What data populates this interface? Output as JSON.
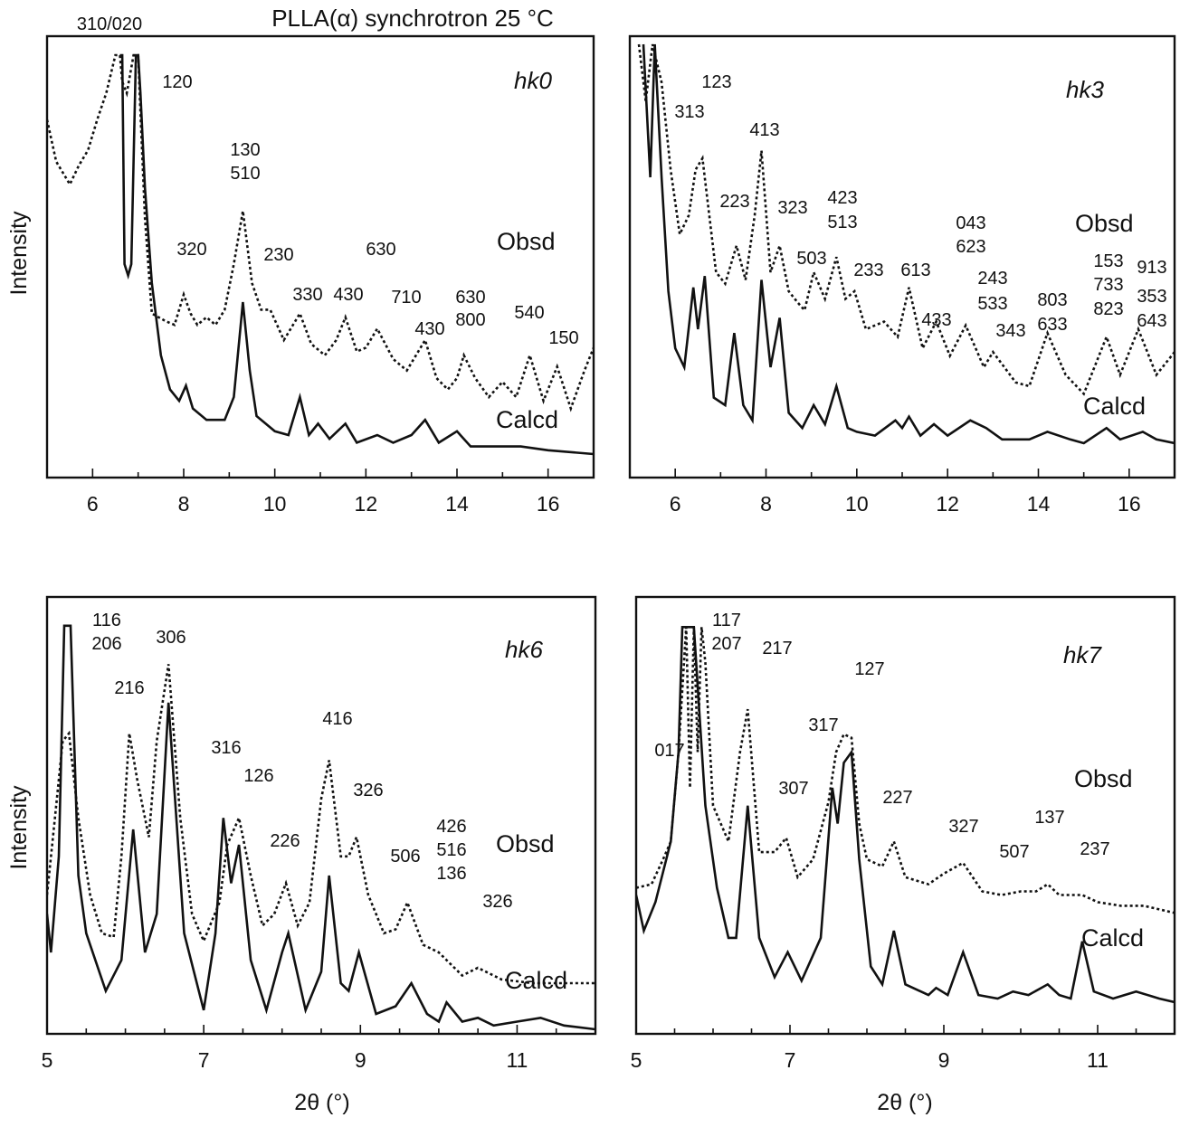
{
  "figure": {
    "title": "PLLA(α) synchrotron 25 °C"
  },
  "chart_data": [
    {
      "type": "line",
      "panel": "top-left",
      "tag": "hk0",
      "ylabel": "Intensity",
      "xlabel": "",
      "xlim": [
        5,
        17
      ],
      "xticks": [
        6,
        8,
        10,
        12,
        14,
        16
      ],
      "grid": false,
      "series_labels": [
        "Obsd",
        "Calcd"
      ],
      "peak_labels": [
        "310/020",
        "120",
        "130",
        "510",
        "320",
        "230",
        "630",
        "330",
        "430",
        "710",
        "630",
        "800",
        "430",
        "540",
        "150"
      ],
      "series": [
        {
          "name": "Obsd",
          "style": "dotted",
          "x": [
            5.0,
            5.2,
            5.5,
            5.7,
            5.9,
            6.1,
            6.3,
            6.5,
            6.6,
            6.65,
            6.75,
            6.9,
            7.0,
            7.05,
            7.15,
            7.3,
            7.6,
            7.8,
            8.0,
            8.15,
            8.3,
            8.5,
            8.7,
            8.9,
            9.1,
            9.3,
            9.5,
            9.7,
            9.9,
            10.2,
            10.55,
            10.8,
            11.1,
            11.35,
            11.55,
            11.8,
            12.0,
            12.25,
            12.6,
            12.9,
            13.1,
            13.3,
            13.55,
            13.8,
            14.0,
            14.15,
            14.4,
            14.7,
            15.0,
            15.3,
            15.6,
            15.9,
            16.2,
            16.5,
            16.8,
            17.0
          ],
          "y": [
            0.88,
            0.77,
            0.71,
            0.76,
            0.8,
            0.88,
            0.95,
            1.05,
            1.05,
            0.98,
            0.95,
            1.05,
            1.05,
            0.9,
            0.62,
            0.37,
            0.35,
            0.34,
            0.42,
            0.37,
            0.34,
            0.36,
            0.34,
            0.38,
            0.5,
            0.64,
            0.45,
            0.38,
            0.38,
            0.3,
            0.37,
            0.29,
            0.26,
            0.3,
            0.36,
            0.27,
            0.28,
            0.33,
            0.25,
            0.22,
            0.26,
            0.3,
            0.2,
            0.17,
            0.2,
            0.26,
            0.2,
            0.15,
            0.19,
            0.15,
            0.26,
            0.14,
            0.23,
            0.12,
            0.22,
            0.28
          ]
        },
        {
          "name": "Calcd",
          "style": "solid",
          "x": [
            6.6,
            6.65,
            6.7,
            6.78,
            6.85,
            6.95,
            7.0,
            7.05,
            7.15,
            7.3,
            7.5,
            7.7,
            7.9,
            8.05,
            8.2,
            8.5,
            8.9,
            9.1,
            9.3,
            9.45,
            9.6,
            9.8,
            10.0,
            10.3,
            10.55,
            10.75,
            10.95,
            11.2,
            11.55,
            11.8,
            12.25,
            12.6,
            13.0,
            13.3,
            13.6,
            14.0,
            14.3,
            14.8,
            15.4,
            16.0,
            17.0
          ],
          "y": [
            1.05,
            1.05,
            0.5,
            0.47,
            0.5,
            1.05,
            1.05,
            0.95,
            0.7,
            0.45,
            0.26,
            0.17,
            0.14,
            0.18,
            0.12,
            0.09,
            0.09,
            0.15,
            0.4,
            0.22,
            0.1,
            0.08,
            0.06,
            0.05,
            0.15,
            0.05,
            0.08,
            0.04,
            0.08,
            0.03,
            0.05,
            0.03,
            0.05,
            0.09,
            0.03,
            0.06,
            0.02,
            0.02,
            0.02,
            0.01,
            0.0
          ]
        }
      ]
    },
    {
      "type": "line",
      "panel": "top-right",
      "tag": "hk3",
      "ylabel": "",
      "xlabel": "",
      "xlim": [
        5,
        17
      ],
      "xticks": [
        6,
        8,
        10,
        12,
        14,
        16
      ],
      "grid": false,
      "series_labels": [
        "Obsd",
        "Calcd"
      ],
      "peak_labels": [
        "123",
        "313",
        "413",
        "223",
        "323",
        "423",
        "513",
        "503",
        "233",
        "613",
        "043",
        "623",
        "433",
        "243",
        "533",
        "343",
        "803",
        "633",
        "153",
        "733",
        "823",
        "913",
        "353",
        "643"
      ],
      "series": [
        {
          "name": "Obsd",
          "style": "dotted",
          "x": [
            5.2,
            5.35,
            5.5,
            5.7,
            5.9,
            6.1,
            6.3,
            6.45,
            6.6,
            6.9,
            7.1,
            7.35,
            7.55,
            7.75,
            7.9,
            8.1,
            8.3,
            8.5,
            8.7,
            8.85,
            9.05,
            9.3,
            9.55,
            9.75,
            9.95,
            10.2,
            10.6,
            10.9,
            11.15,
            11.45,
            11.75,
            12.05,
            12.4,
            12.8,
            13.0,
            13.25,
            13.5,
            13.8,
            14.2,
            14.6,
            15.0,
            15.5,
            15.8,
            16.2,
            16.6,
            17.0
          ],
          "y": [
            1.05,
            0.9,
            1.05,
            0.95,
            0.72,
            0.55,
            0.6,
            0.72,
            0.75,
            0.45,
            0.42,
            0.52,
            0.43,
            0.6,
            0.77,
            0.45,
            0.52,
            0.4,
            0.37,
            0.35,
            0.45,
            0.38,
            0.49,
            0.38,
            0.4,
            0.3,
            0.32,
            0.28,
            0.41,
            0.25,
            0.32,
            0.23,
            0.31,
            0.2,
            0.24,
            0.2,
            0.16,
            0.15,
            0.29,
            0.18,
            0.13,
            0.28,
            0.18,
            0.3,
            0.18,
            0.24
          ]
        },
        {
          "name": "Calcd",
          "style": "solid",
          "x": [
            5.3,
            5.45,
            5.55,
            5.7,
            5.85,
            6.0,
            6.2,
            6.4,
            6.5,
            6.65,
            6.85,
            7.1,
            7.3,
            7.5,
            7.7,
            7.9,
            8.1,
            8.3,
            8.5,
            8.8,
            9.05,
            9.3,
            9.55,
            9.8,
            10.0,
            10.4,
            10.85,
            11.0,
            11.15,
            11.4,
            11.7,
            12.0,
            12.5,
            12.85,
            13.2,
            13.8,
            14.2,
            14.7,
            15.0,
            15.5,
            15.8,
            16.3,
            16.6,
            17.0
          ],
          "y": [
            1.05,
            0.7,
            1.05,
            0.7,
            0.4,
            0.25,
            0.2,
            0.41,
            0.3,
            0.44,
            0.12,
            0.1,
            0.29,
            0.1,
            0.06,
            0.43,
            0.2,
            0.33,
            0.08,
            0.04,
            0.1,
            0.05,
            0.15,
            0.04,
            0.03,
            0.02,
            0.06,
            0.04,
            0.07,
            0.02,
            0.05,
            0.02,
            0.06,
            0.04,
            0.01,
            0.01,
            0.03,
            0.01,
            0.0,
            0.04,
            0.01,
            0.03,
            0.01,
            0.0
          ]
        }
      ]
    },
    {
      "type": "line",
      "panel": "bottom-left",
      "tag": "hk6",
      "ylabel": "Intensity",
      "xlabel": "2θ (°)",
      "xlim": [
        5,
        12
      ],
      "xticks": [
        5,
        7,
        9,
        11
      ],
      "grid": false,
      "series_labels": [
        "Obsd",
        "Calcd"
      ],
      "peak_labels": [
        "116",
        "206",
        "306",
        "216",
        "316",
        "126",
        "416",
        "226",
        "326",
        "506",
        "426",
        "516",
        "136",
        "326"
      ],
      "series": [
        {
          "name": "Obsd",
          "style": "dotted",
          "x": [
            5.0,
            5.1,
            5.2,
            5.28,
            5.4,
            5.55,
            5.7,
            5.85,
            5.95,
            6.05,
            6.15,
            6.3,
            6.4,
            6.55,
            6.7,
            6.85,
            7.0,
            7.2,
            7.3,
            7.45,
            7.6,
            7.75,
            7.9,
            8.05,
            8.2,
            8.35,
            8.5,
            8.6,
            8.75,
            8.85,
            8.95,
            9.1,
            9.3,
            9.45,
            9.6,
            9.8,
            10.0,
            10.1,
            10.3,
            10.5,
            10.8,
            11.2,
            11.6,
            12.0
          ],
          "y": [
            0.35,
            0.55,
            0.75,
            0.77,
            0.55,
            0.35,
            0.25,
            0.24,
            0.45,
            0.77,
            0.65,
            0.5,
            0.75,
            0.95,
            0.55,
            0.3,
            0.23,
            0.33,
            0.48,
            0.55,
            0.4,
            0.27,
            0.3,
            0.38,
            0.27,
            0.33,
            0.6,
            0.7,
            0.45,
            0.45,
            0.5,
            0.35,
            0.25,
            0.26,
            0.33,
            0.22,
            0.2,
            0.18,
            0.14,
            0.16,
            0.13,
            0.12,
            0.12,
            0.12
          ]
        },
        {
          "name": "Calcd",
          "style": "solid",
          "x": [
            5.0,
            5.05,
            5.15,
            5.22,
            5.3,
            5.4,
            5.5,
            5.75,
            5.95,
            6.1,
            6.25,
            6.4,
            6.55,
            6.75,
            7.0,
            7.15,
            7.25,
            7.35,
            7.45,
            7.6,
            7.8,
            8.0,
            8.08,
            8.3,
            8.5,
            8.6,
            8.75,
            8.85,
            8.98,
            9.2,
            9.45,
            9.65,
            9.85,
            10.0,
            10.1,
            10.3,
            10.5,
            10.7,
            11.0,
            11.3,
            11.6,
            12.0
          ],
          "y": [
            0.3,
            0.2,
            0.45,
            1.05,
            1.05,
            0.4,
            0.25,
            0.1,
            0.18,
            0.52,
            0.2,
            0.3,
            0.85,
            0.25,
            0.05,
            0.25,
            0.55,
            0.38,
            0.48,
            0.18,
            0.05,
            0.2,
            0.25,
            0.05,
            0.15,
            0.4,
            0.12,
            0.1,
            0.2,
            0.04,
            0.06,
            0.12,
            0.04,
            0.02,
            0.07,
            0.02,
            0.03,
            0.01,
            0.02,
            0.03,
            0.01,
            0.0
          ]
        }
      ]
    },
    {
      "type": "line",
      "panel": "bottom-right",
      "tag": "hk7",
      "ylabel": "",
      "xlabel": "2θ (°)",
      "xlim": [
        5,
        12
      ],
      "xticks": [
        5,
        7,
        9,
        11
      ],
      "grid": false,
      "series_labels": [
        "Obsd",
        "Calcd"
      ],
      "peak_labels": [
        "117",
        "207",
        "217",
        "127",
        "017",
        "317",
        "307",
        "227",
        "327",
        "137",
        "507",
        "237"
      ],
      "series": [
        {
          "name": "Obsd",
          "style": "dotted",
          "x": [
            5.0,
            5.2,
            5.35,
            5.45,
            5.55,
            5.65,
            5.7,
            5.75,
            5.8,
            5.85,
            5.9,
            6.0,
            6.2,
            6.35,
            6.45,
            6.6,
            6.8,
            6.95,
            7.1,
            7.3,
            7.5,
            7.6,
            7.7,
            7.8,
            7.9,
            8.0,
            8.2,
            8.35,
            8.5,
            8.8,
            9.0,
            9.25,
            9.5,
            9.75,
            10.0,
            10.2,
            10.35,
            10.5,
            10.8,
            11.0,
            11.3,
            11.6,
            12.0
          ],
          "y": [
            0.32,
            0.33,
            0.4,
            0.45,
            0.7,
            1.05,
            0.6,
            1.05,
            0.7,
            1.05,
            0.95,
            0.55,
            0.45,
            0.7,
            0.82,
            0.42,
            0.42,
            0.46,
            0.35,
            0.4,
            0.56,
            0.7,
            0.75,
            0.74,
            0.5,
            0.4,
            0.38,
            0.45,
            0.35,
            0.33,
            0.36,
            0.39,
            0.31,
            0.3,
            0.31,
            0.31,
            0.33,
            0.3,
            0.3,
            0.28,
            0.27,
            0.27,
            0.25
          ]
        },
        {
          "name": "Calcd",
          "style": "solid",
          "x": [
            5.0,
            5.1,
            5.25,
            5.45,
            5.55,
            5.6,
            5.65,
            5.75,
            5.9,
            6.05,
            6.2,
            6.3,
            6.45,
            6.6,
            6.8,
            6.97,
            7.15,
            7.4,
            7.55,
            7.62,
            7.7,
            7.8,
            7.9,
            8.05,
            8.2,
            8.35,
            8.5,
            8.8,
            8.9,
            9.05,
            9.25,
            9.45,
            9.7,
            9.9,
            10.1,
            10.35,
            10.5,
            10.65,
            10.8,
            10.95,
            11.2,
            11.5,
            11.8,
            12.0
          ],
          "y": [
            0.3,
            0.2,
            0.28,
            0.45,
            0.7,
            1.05,
            1.05,
            1.05,
            0.55,
            0.32,
            0.18,
            0.18,
            0.55,
            0.18,
            0.07,
            0.14,
            0.06,
            0.18,
            0.6,
            0.5,
            0.67,
            0.7,
            0.4,
            0.1,
            0.05,
            0.2,
            0.05,
            0.02,
            0.04,
            0.02,
            0.14,
            0.02,
            0.01,
            0.03,
            0.02,
            0.05,
            0.02,
            0.01,
            0.17,
            0.03,
            0.01,
            0.03,
            0.01,
            0.0
          ]
        }
      ]
    }
  ]
}
